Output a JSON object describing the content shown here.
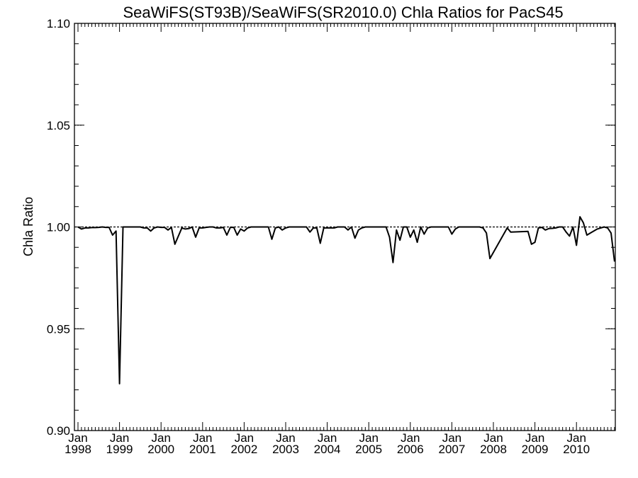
{
  "chart_data": {
    "type": "line",
    "title": "SeaWiFS(ST93B)/SeaWiFS(SR2010.0)  Chla Ratios for PacS45",
    "ylabel": "Chla Ratio",
    "xlabel": "",
    "ylim": [
      0.9,
      1.1
    ],
    "xlim": [
      "1998-01",
      "2010-12"
    ],
    "y_ticks": [
      "1.10",
      "1.05",
      "1.00",
      "0.95",
      "0.90"
    ],
    "x_ticks": [
      {
        "top": "Jan",
        "bottom": "1998",
        "date": "1998-01"
      },
      {
        "top": "Jan",
        "bottom": "1999",
        "date": "1999-01"
      },
      {
        "top": "Jan",
        "bottom": "2000",
        "date": "2000-01"
      },
      {
        "top": "Jan",
        "bottom": "2001",
        "date": "2001-01"
      },
      {
        "top": "Jan",
        "bottom": "2002",
        "date": "2002-01"
      },
      {
        "top": "Jan",
        "bottom": "2003",
        "date": "2003-01"
      },
      {
        "top": "Jan",
        "bottom": "2004",
        "date": "2004-01"
      },
      {
        "top": "Jan",
        "bottom": "2005",
        "date": "2005-01"
      },
      {
        "top": "Jan",
        "bottom": "2006",
        "date": "2006-01"
      },
      {
        "top": "Jan",
        "bottom": "2007",
        "date": "2007-01"
      },
      {
        "top": "Jan",
        "bottom": "2008",
        "date": "2008-01"
      },
      {
        "top": "Jan",
        "bottom": "2009",
        "date": "2009-01"
      },
      {
        "top": "Jan",
        "bottom": "2010",
        "date": "2010-01"
      }
    ],
    "reference_line": {
      "y": 1.0,
      "style": "dotted"
    },
    "gridlines": "dotted y ticks at 1.05 and 0.95",
    "series": [
      {
        "color": "#000000",
        "points": [
          [
            "1998-01",
            1.0
          ],
          [
            "1998-02",
            0.999
          ],
          [
            "1998-03",
            0.9995
          ],
          [
            "1998-04",
            0.9995
          ],
          [
            "1998-05",
            0.9997
          ],
          [
            "1998-06",
            0.9997
          ],
          [
            "1998-07",
            0.9998
          ],
          [
            "1998-08",
            1.0
          ],
          [
            "1998-09",
            0.9998
          ],
          [
            "1998-10",
            0.9998
          ],
          [
            "1998-11",
            0.996
          ],
          [
            "1998-12",
            0.998
          ],
          [
            "1999-01",
            0.923
          ],
          [
            "1999-02",
            1.0
          ],
          [
            "1999-03",
            1.0
          ],
          [
            "1999-04",
            1.0
          ],
          [
            "1999-05",
            1.0
          ],
          [
            "1999-06",
            1.0
          ],
          [
            "1999-07",
            1.0
          ],
          [
            "1999-08",
            0.9995
          ],
          [
            "1999-09",
            0.9995
          ],
          [
            "1999-10",
            0.998
          ],
          [
            "1999-11",
            0.9995
          ],
          [
            "1999-12",
            1.0
          ],
          [
            "2000-01",
            0.9998
          ],
          [
            "2000-02",
            0.9998
          ],
          [
            "2000-03",
            0.9985
          ],
          [
            "2000-04",
            0.9998
          ],
          [
            "2000-05",
            0.9915
          ],
          [
            "2000-06",
            0.9955
          ],
          [
            "2000-07",
            0.9995
          ],
          [
            "2000-08",
            0.999
          ],
          [
            "2000-09",
            0.9992
          ],
          [
            "2000-10",
            1.0
          ],
          [
            "2000-11",
            0.995
          ],
          [
            "2000-12",
            0.9995
          ],
          [
            "2001-01",
            0.9995
          ],
          [
            "2001-02",
            0.9998
          ],
          [
            "2001-03",
            1.0
          ],
          [
            "2001-04",
            1.0
          ],
          [
            "2001-05",
            0.9995
          ],
          [
            "2001-06",
            0.9995
          ],
          [
            "2001-07",
            0.9998
          ],
          [
            "2001-08",
            0.996
          ],
          [
            "2001-09",
            0.9998
          ],
          [
            "2001-10",
            0.9998
          ],
          [
            "2001-11",
            0.996
          ],
          [
            "2001-12",
            0.999
          ],
          [
            "2002-01",
            0.998
          ],
          [
            "2002-02",
            0.9995
          ],
          [
            "2002-03",
            1.0
          ],
          [
            "2002-04",
            1.0
          ],
          [
            "2002-05",
            1.0
          ],
          [
            "2002-06",
            1.0
          ],
          [
            "2002-07",
            1.0
          ],
          [
            "2002-08",
            1.0
          ],
          [
            "2002-09",
            0.994
          ],
          [
            "2002-10",
            0.9995
          ],
          [
            "2002-11",
            1.0
          ],
          [
            "2002-12",
            0.9985
          ],
          [
            "2003-01",
            0.9995
          ],
          [
            "2003-02",
            1.0
          ],
          [
            "2003-03",
            1.0
          ],
          [
            "2003-04",
            1.0
          ],
          [
            "2003-05",
            1.0
          ],
          [
            "2003-06",
            1.0
          ],
          [
            "2003-07",
            1.0
          ],
          [
            "2003-08",
            0.9975
          ],
          [
            "2003-09",
            0.9995
          ],
          [
            "2003-10",
            0.9995
          ],
          [
            "2003-11",
            0.992
          ],
          [
            "2003-12",
            0.9995
          ],
          [
            "2004-01",
            0.9995
          ],
          [
            "2004-02",
            0.9995
          ],
          [
            "2004-03",
            0.9995
          ],
          [
            "2004-04",
            1.0
          ],
          [
            "2004-05",
            1.0
          ],
          [
            "2004-06",
            1.0
          ],
          [
            "2004-07",
            0.9985
          ],
          [
            "2004-08",
            1.0
          ],
          [
            "2004-09",
            0.9945
          ],
          [
            "2004-10",
            0.9985
          ],
          [
            "2004-11",
            0.9995
          ],
          [
            "2004-12",
            1.0
          ],
          [
            "2005-01",
            1.0
          ],
          [
            "2005-02",
            1.0
          ],
          [
            "2005-03",
            1.0
          ],
          [
            "2005-04",
            1.0
          ],
          [
            "2005-05",
            1.0
          ],
          [
            "2005-06",
            1.0
          ],
          [
            "2005-07",
            0.995
          ],
          [
            "2005-08",
            0.9825
          ],
          [
            "2005-09",
            0.9985
          ],
          [
            "2005-10",
            0.9935
          ],
          [
            "2005-11",
            1.0
          ],
          [
            "2005-12",
            1.0
          ],
          [
            "2006-01",
            0.995
          ],
          [
            "2006-02",
            0.9985
          ],
          [
            "2006-03",
            0.9925
          ],
          [
            "2006-04",
            1.0
          ],
          [
            "2006-05",
            0.9965
          ],
          [
            "2006-06",
            0.9995
          ],
          [
            "2006-07",
            1.0
          ],
          [
            "2006-08",
            1.0
          ],
          [
            "2006-09",
            1.0
          ],
          [
            "2006-10",
            1.0
          ],
          [
            "2006-11",
            1.0
          ],
          [
            "2006-12",
            1.0
          ],
          [
            "2007-01",
            0.9965
          ],
          [
            "2007-02",
            0.999
          ],
          [
            "2007-03",
            1.0
          ],
          [
            "2007-04",
            1.0
          ],
          [
            "2007-05",
            1.0
          ],
          [
            "2007-06",
            1.0
          ],
          [
            "2007-07",
            1.0
          ],
          [
            "2007-08",
            1.0
          ],
          [
            "2007-09",
            1.0
          ],
          [
            "2007-10",
            0.9995
          ],
          [
            "2007-11",
            0.997
          ],
          [
            "2007-12",
            0.9845
          ],
          [
            "2008-05",
            0.9995
          ],
          [
            "2008-06",
            0.9975
          ],
          [
            "2008-11",
            0.9978
          ],
          [
            "2008-12",
            0.9915
          ],
          [
            "2009-01",
            0.9925
          ],
          [
            "2009-02",
            0.9995
          ],
          [
            "2009-03",
            0.9998
          ],
          [
            "2009-04",
            0.9985
          ],
          [
            "2009-05",
            0.9992
          ],
          [
            "2009-06",
            0.9993
          ],
          [
            "2009-07",
            0.9995
          ],
          [
            "2009-08",
            1.0
          ],
          [
            "2009-09",
            1.0
          ],
          [
            "2009-10",
            0.9975
          ],
          [
            "2009-11",
            0.9955
          ],
          [
            "2009-12",
            1.0
          ],
          [
            "2010-01",
            0.991
          ],
          [
            "2010-02",
            1.005
          ],
          [
            "2010-03",
            1.002
          ],
          [
            "2010-04",
            0.996
          ],
          [
            "2010-05",
            0.997
          ],
          [
            "2010-06",
            0.998
          ],
          [
            "2010-07",
            0.999
          ],
          [
            "2010-08",
            0.9995
          ],
          [
            "2010-09",
            1.0
          ],
          [
            "2010-10",
            0.9995
          ],
          [
            "2010-11",
            0.997
          ],
          [
            "2010-12",
            0.983
          ]
        ]
      }
    ]
  }
}
